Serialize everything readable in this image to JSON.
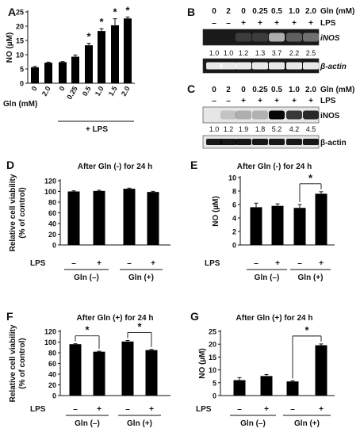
{
  "chart_data": [
    {
      "id": "A",
      "type": "bar",
      "panel_label": "A",
      "ylabel": "NO (µM)",
      "ylim": [
        0,
        25
      ],
      "yticks": [
        0,
        5,
        10,
        15,
        20,
        25
      ],
      "categories": [
        "0",
        "2.0",
        "0",
        "0.25",
        "0.5",
        "1.0",
        "1.5",
        "2.0"
      ],
      "values": [
        5.6,
        7.2,
        7.4,
        9.3,
        13.3,
        18.3,
        20.3,
        22.7
      ],
      "errors": [
        0.3,
        0.2,
        0.2,
        0.6,
        0.7,
        0.8,
        2.3,
        0.5
      ],
      "significant": [
        false,
        false,
        false,
        false,
        true,
        true,
        true,
        true
      ],
      "x_row_label": "Gln (mM)",
      "group_label": "+ LPS",
      "grid": false
    },
    {
      "id": "D",
      "type": "bar",
      "panel_label": "D",
      "title": "After Gln (-) for 24 h",
      "ylabel": "Relative cell viability (% of control)",
      "ylabel_lines": [
        "Relative cell viability",
        "(% of control)"
      ],
      "ylim": [
        0,
        120
      ],
      "yticks": [
        0,
        20,
        40,
        60,
        80,
        100,
        120
      ],
      "lps_row_label": "LPS",
      "lps": [
        "–",
        "+",
        "–",
        "+"
      ],
      "values": [
        100,
        101,
        105,
        99
      ],
      "errors": [
        1.2,
        1.2,
        1.2,
        1.2
      ],
      "groups": [
        "Gln (–)",
        "Gln (+)"
      ],
      "significance": [],
      "grid": false
    },
    {
      "id": "E",
      "type": "bar",
      "panel_label": "E",
      "title": "After Gln (-) for 24 h",
      "ylabel": "NO (µM)",
      "ylim": [
        0,
        10
      ],
      "yticks": [
        0,
        2,
        4,
        6,
        8,
        10
      ],
      "lps_row_label": "LPS",
      "lps": [
        "–",
        "+",
        "–",
        "+"
      ],
      "values": [
        5.6,
        5.8,
        5.5,
        7.6
      ],
      "errors": [
        0.6,
        0.3,
        0.5,
        0.3
      ],
      "groups": [
        "Gln (–)",
        "Gln (+)"
      ],
      "significance": [
        [
          2,
          3,
          "*"
        ]
      ],
      "grid": false
    },
    {
      "id": "F",
      "type": "bar",
      "panel_label": "F",
      "title": "After Gln (+) for 24 h",
      "ylabel": "Relative cell viability (% of control)",
      "ylabel_lines": [
        "Relative cell viability",
        "(% of control)"
      ],
      "ylim": [
        0,
        120
      ],
      "yticks": [
        0,
        20,
        40,
        60,
        80,
        100,
        120
      ],
      "lps_row_label": "LPS",
      "lps": [
        "–",
        "+",
        "–",
        "+"
      ],
      "values": [
        96,
        82,
        101,
        85
      ],
      "errors": [
        0.8,
        1.0,
        2.0,
        1.2
      ],
      "groups": [
        "Gln (–)",
        "Gln (+)"
      ],
      "significance": [
        [
          0,
          1,
          "*"
        ],
        [
          2,
          3,
          "*"
        ]
      ],
      "grid": false
    },
    {
      "id": "G",
      "type": "bar",
      "panel_label": "G",
      "title": "After Gln (+) for 24 h",
      "ylabel": "NO (µM)",
      "ylim": [
        0,
        25
      ],
      "yticks": [
        0,
        5,
        10,
        15,
        20,
        25
      ],
      "lps_row_label": "LPS",
      "lps": [
        "–",
        "+",
        "–",
        "+"
      ],
      "values": [
        6.0,
        7.6,
        5.5,
        19.6
      ],
      "errors": [
        1.0,
        0.6,
        0.3,
        0.5
      ],
      "groups": [
        "Gln (–)",
        "Gln (+)"
      ],
      "significance": [
        [
          2,
          3,
          "*"
        ]
      ],
      "grid": false
    }
  ],
  "blots": [
    {
      "id": "B",
      "panel_label": "B",
      "gln_row_label": "Gln (mM)",
      "gln": [
        "0",
        "2",
        "0",
        "0.25",
        "0.5",
        "1.0",
        "2.0"
      ],
      "lps_row_label": "LPS",
      "lps": [
        "–",
        "–",
        "+",
        "+",
        "+",
        "+",
        "+"
      ],
      "bands": [
        "iNOS",
        "β-actin"
      ],
      "quant": [
        "1.0",
        "1.0",
        "1.2",
        "1.3",
        "3.7",
        "2.2",
        "2.5"
      ]
    },
    {
      "id": "C",
      "panel_label": "C",
      "gln_row_label": "Gln (mM)",
      "gln": [
        "0",
        "2",
        "0",
        "0.25",
        "0.5",
        "1.0",
        "2.0"
      ],
      "lps_row_label": "LPS",
      "lps": [
        "–",
        "–",
        "+",
        "+",
        "+",
        "+",
        "+"
      ],
      "bands": [
        "iNOS",
        "β-actin"
      ],
      "quant": [
        "1.0",
        "1.2",
        "1.9",
        "1.8",
        "5.2",
        "4.2",
        "4.5"
      ]
    }
  ]
}
